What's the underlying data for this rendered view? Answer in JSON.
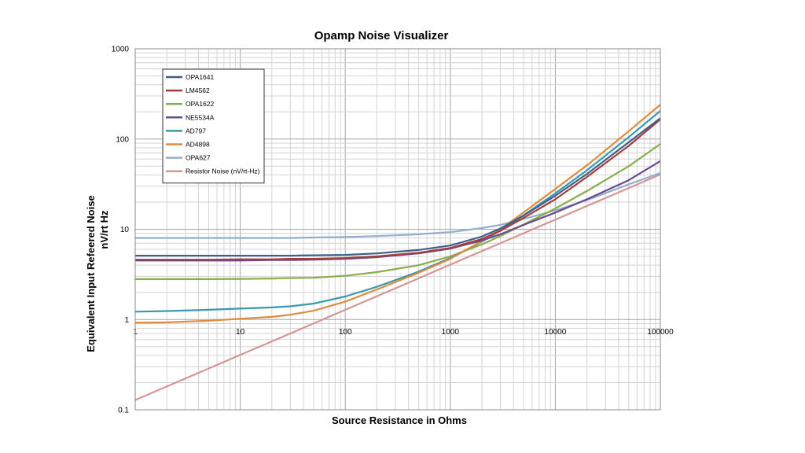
{
  "chart_data": {
    "type": "line",
    "title": "Opamp Noise Visualizer",
    "xlabel": "Source Resistance in Ohms",
    "ylabel_line1": "Equivalent Input Refeered Noise",
    "ylabel_line2": "nV/rt Hz",
    "xscale": "log",
    "yscale": "log",
    "xlim": [
      1,
      100000
    ],
    "ylim": [
      0.1,
      1000
    ],
    "x_ticks": [
      {
        "value": 1,
        "label": "1"
      },
      {
        "value": 10,
        "label": "10"
      },
      {
        "value": 100,
        "label": "100"
      },
      {
        "value": 1000,
        "label": "1000"
      },
      {
        "value": 10000,
        "label": "10000"
      },
      {
        "value": 100000,
        "label": "100000"
      }
    ],
    "y_ticks": [
      {
        "value": 0.1,
        "label": "0.1"
      },
      {
        "value": 1,
        "label": "1"
      },
      {
        "value": 10,
        "label": "10"
      },
      {
        "value": 100,
        "label": "100"
      },
      {
        "value": 1000,
        "label": "1000"
      }
    ],
    "grid": true,
    "legend_position": "top-left",
    "x": [
      1,
      2,
      5,
      10,
      20,
      30,
      50,
      100,
      200,
      500,
      1000,
      2000,
      3000,
      5000,
      10000,
      20000,
      50000,
      100000
    ],
    "series": [
      {
        "name": "OPA1641",
        "color": "#3d5f8c",
        "values": [
          5.1,
          5.1,
          5.1,
          5.1,
          5.1,
          5.1,
          5.15,
          5.2,
          5.4,
          5.9,
          6.6,
          8.3,
          10.2,
          14.2,
          23.5,
          41,
          92,
          170
        ]
      },
      {
        "name": "LM4562",
        "color": "#a33d3c",
        "values": [
          4.6,
          4.6,
          4.6,
          4.65,
          4.65,
          4.7,
          4.7,
          4.8,
          5.0,
          5.5,
          6.2,
          7.8,
          9.6,
          13.4,
          21.5,
          38,
          84,
          165
        ]
      },
      {
        "name": "OPA1622",
        "color": "#8aad4b",
        "values": [
          2.8,
          2.8,
          2.8,
          2.82,
          2.85,
          2.88,
          2.9,
          3.05,
          3.35,
          4.0,
          5.0,
          6.8,
          8.4,
          11.3,
          17.0,
          26.5,
          50,
          88
        ]
      },
      {
        "name": "NE5534A",
        "color": "#6b4a8e",
        "values": [
          4.5,
          4.5,
          4.5,
          4.5,
          4.55,
          4.55,
          4.6,
          4.7,
          4.9,
          5.4,
          6.1,
          7.5,
          8.8,
          11.2,
          15.3,
          21.5,
          35,
          57
        ]
      },
      {
        "name": "AD797",
        "color": "#3a99ae",
        "values": [
          1.22,
          1.24,
          1.28,
          1.32,
          1.36,
          1.4,
          1.5,
          1.8,
          2.3,
          3.4,
          4.8,
          7.3,
          9.7,
          14.3,
          25,
          45,
          105,
          205
        ]
      },
      {
        "name": "AD4898",
        "color": "#e08a3b",
        "values": [
          0.92,
          0.93,
          0.97,
          1.02,
          1.07,
          1.13,
          1.25,
          1.58,
          2.15,
          3.3,
          4.7,
          7.4,
          10,
          15.4,
          28,
          51,
          122,
          240
        ]
      },
      {
        "name": "OPA627",
        "color": "#95aed0",
        "values": [
          8.0,
          8.0,
          8.0,
          8.0,
          8.0,
          8.0,
          8.1,
          8.2,
          8.4,
          8.8,
          9.3,
          10.3,
          11.2,
          13.0,
          16.2,
          21.0,
          31.5,
          42
        ]
      },
      {
        "name": "Resistor Noise (nV/rt-Hz)",
        "color": "#d49593",
        "values": [
          0.128,
          0.181,
          0.286,
          0.405,
          0.572,
          0.701,
          0.905,
          1.28,
          1.81,
          2.86,
          4.05,
          5.72,
          7.01,
          9.05,
          12.8,
          18.1,
          28.6,
          40.5
        ]
      }
    ]
  }
}
